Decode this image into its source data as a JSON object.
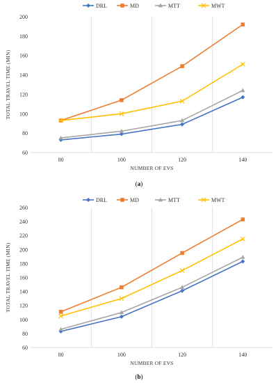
{
  "chart_data": [
    {
      "type": "line",
      "caption": "a",
      "x": [
        80,
        100,
        120,
        140
      ],
      "xlabel": "NUMBER OF EVS",
      "ylabel": "TOTAL TRAVEL TIME (MIN)",
      "ylim": [
        60,
        200
      ],
      "yticks": [
        60,
        80,
        100,
        120,
        140,
        160,
        180,
        200
      ],
      "legend_position": "top",
      "grid": "vertical",
      "series": [
        {
          "name": "DRL",
          "color": "#4472C4",
          "marker": "diamond",
          "values": [
            73,
            79,
            89,
            117
          ]
        },
        {
          "name": "MD",
          "color": "#ED7D31",
          "marker": "square",
          "values": [
            93,
            114,
            149,
            192
          ]
        },
        {
          "name": "MTT",
          "color": "#A5A5A5",
          "marker": "triangle",
          "values": [
            75,
            82,
            93,
            124
          ]
        },
        {
          "name": "MWT",
          "color": "#FFC000",
          "marker": "x",
          "values": [
            93,
            100,
            113,
            151
          ]
        }
      ]
    },
    {
      "type": "line",
      "caption": "b",
      "x": [
        80,
        100,
        120,
        140
      ],
      "xlabel": "NUMBER OF EVS",
      "ylabel": "TOTAL TRAVEL TIME (MIN)",
      "ylim": [
        60,
        260
      ],
      "yticks": [
        60,
        80,
        100,
        120,
        140,
        160,
        180,
        200,
        220,
        240,
        260
      ],
      "legend_position": "top",
      "grid": "vertical",
      "series": [
        {
          "name": "DRL",
          "color": "#4472C4",
          "marker": "diamond",
          "values": [
            83,
            104,
            141,
            183
          ]
        },
        {
          "name": "MD",
          "color": "#ED7D31",
          "marker": "square",
          "values": [
            111,
            146,
            195,
            243
          ]
        },
        {
          "name": "MTT",
          "color": "#A5A5A5",
          "marker": "triangle",
          "values": [
            86,
            110,
            146,
            189
          ]
        },
        {
          "name": "MWT",
          "color": "#FFC000",
          "marker": "x",
          "values": [
            105,
            130,
            170,
            215
          ]
        }
      ]
    }
  ]
}
